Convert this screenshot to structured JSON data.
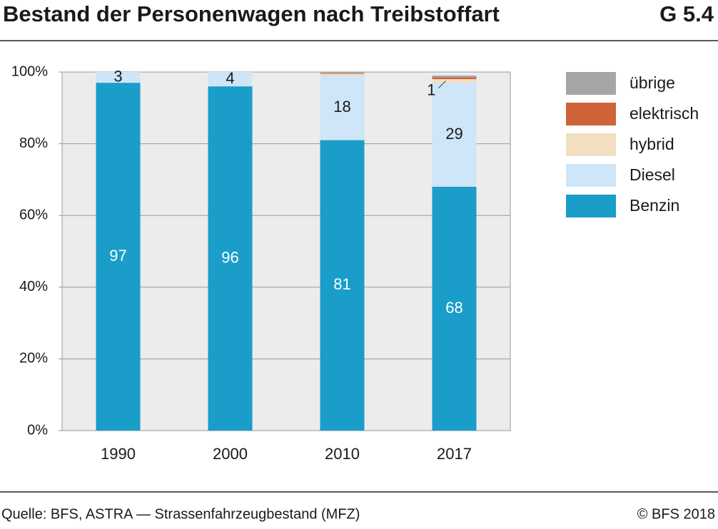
{
  "chart_data": {
    "type": "stacked_bar",
    "title": "Bestand der Personenwagen nach Treibstoffart",
    "figure_number": "G 5.4",
    "source": "Quelle: BFS, ASTRA — Strassenfahrzeugbestand (MFZ)",
    "copyright": "© BFS 2018",
    "categories": [
      "1990",
      "2000",
      "2010",
      "2017"
    ],
    "series": [
      {
        "name": "Benzin",
        "color": "#1b9dc9",
        "values": [
          97,
          96,
          81,
          68
        ]
      },
      {
        "name": "Diesel",
        "color": "#cfe5f8",
        "values": [
          3,
          4,
          18,
          29
        ]
      },
      {
        "name": "hybrid",
        "color": "#f2dfc2",
        "values": [
          0,
          0,
          0.5,
          1
        ]
      },
      {
        "name": "elektrisch",
        "color": "#d0633a",
        "values": [
          0,
          0,
          0.1,
          0.5
        ]
      },
      {
        "name": "übrige",
        "color": "#a6a6a6",
        "values": [
          0,
          0,
          0.4,
          0.5
        ]
      }
    ],
    "ylim": [
      0,
      100
    ],
    "yticks": [
      {
        "value": 0,
        "label": "0%"
      },
      {
        "value": 20,
        "label": "20%"
      },
      {
        "value": 40,
        "label": "40%"
      },
      {
        "value": 60,
        "label": "60%"
      },
      {
        "value": 80,
        "label": "80%"
      },
      {
        "value": 100,
        "label": "100%"
      }
    ],
    "grid": true
  }
}
